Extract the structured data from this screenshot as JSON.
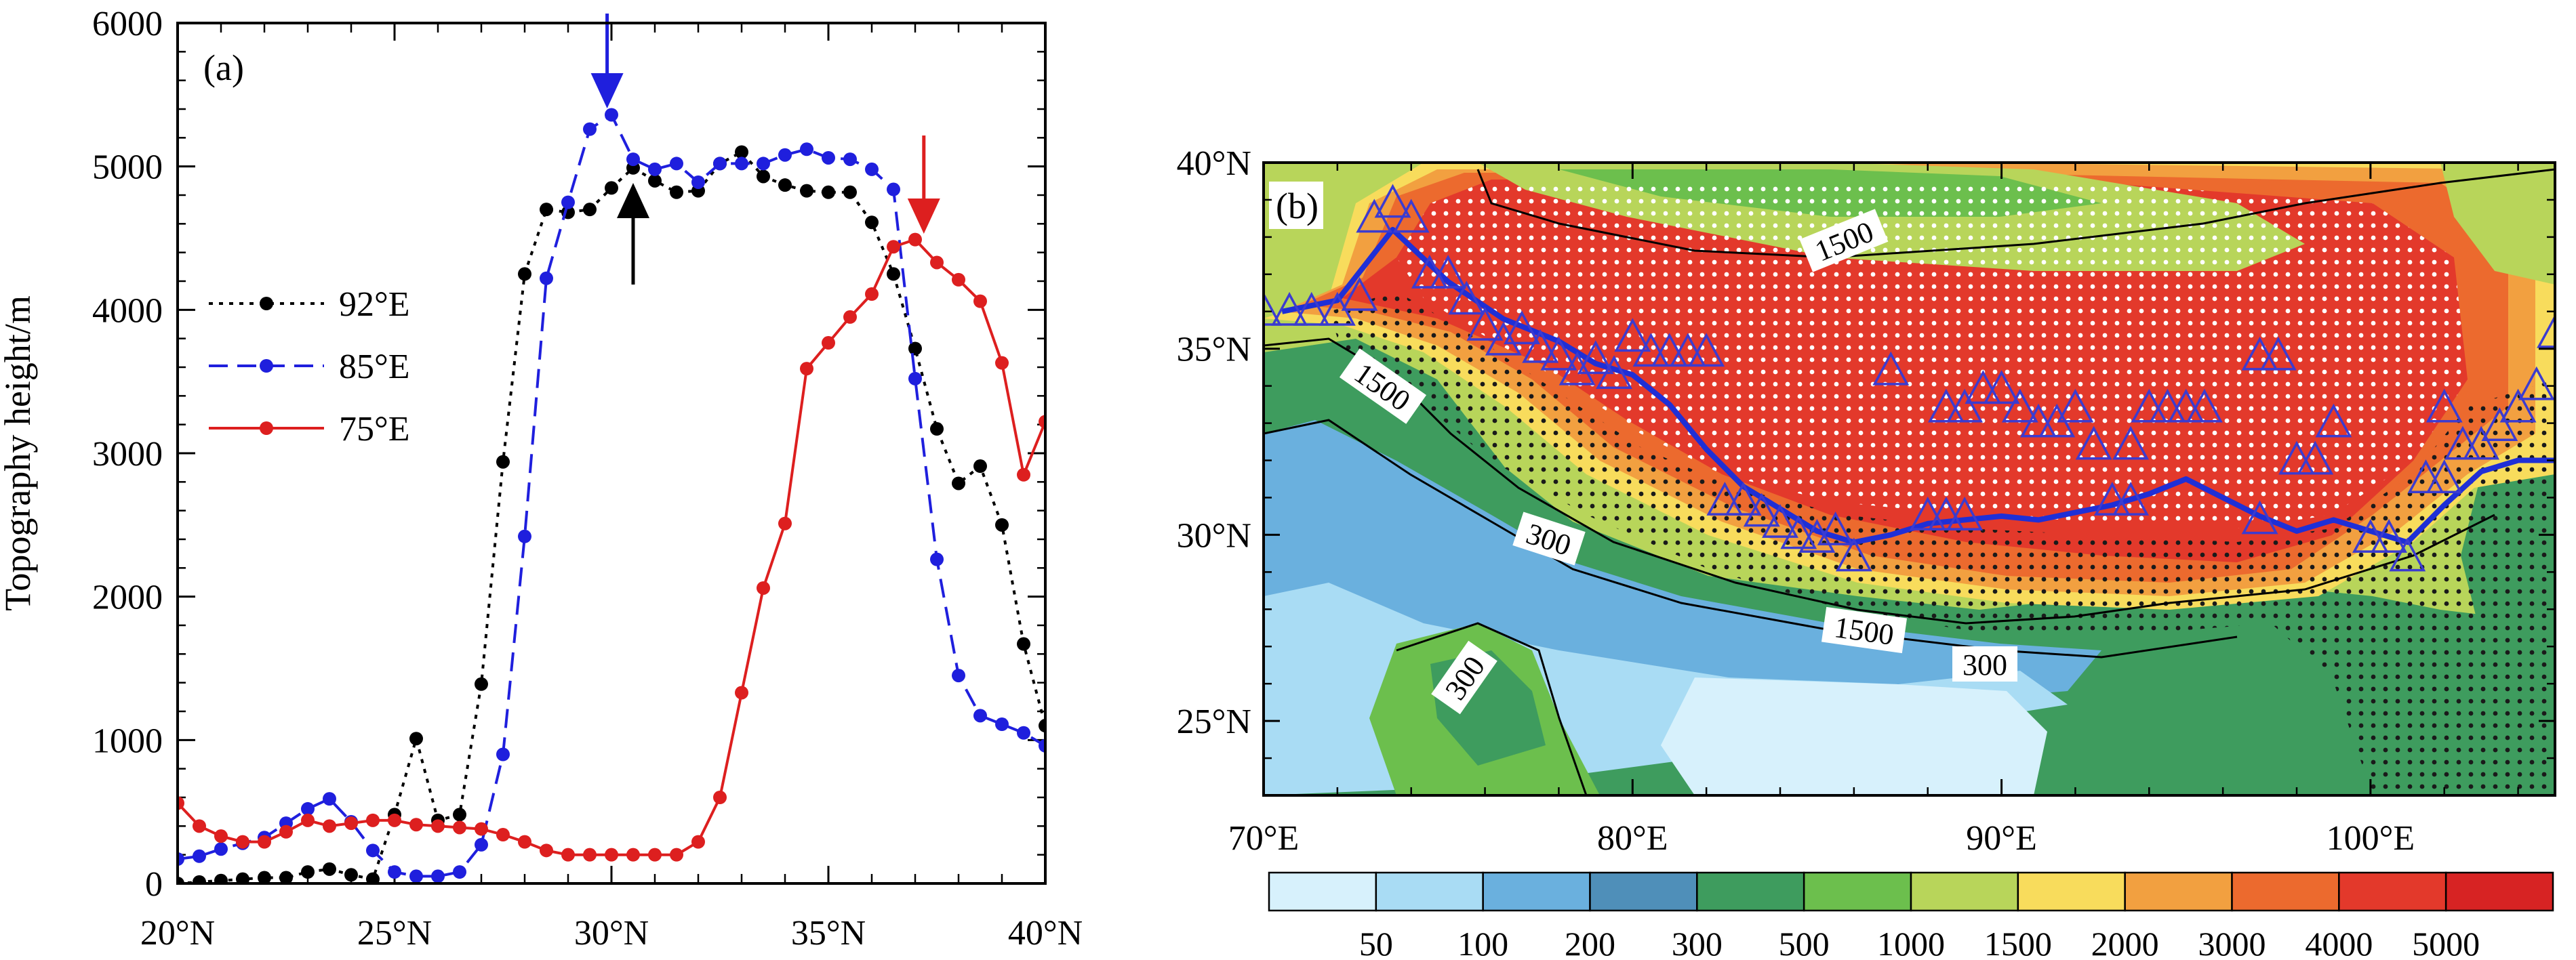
{
  "chart_data": [
    {
      "panel_label": "(a)",
      "type": "line",
      "ylabel": "Topography height/m",
      "xlim": [
        20,
        40
      ],
      "ylim": [
        0,
        6000
      ],
      "x_ticks": [
        "20°N",
        "25°N",
        "30°N",
        "35°N",
        "40°N"
      ],
      "y_ticks": [
        "0",
        "1000",
        "2000",
        "3000",
        "4000",
        "5000",
        "6000"
      ],
      "legend_position": "left",
      "series": [
        {
          "name": "92°E",
          "color": "#000000",
          "style": "dotted",
          "points": [
            [
              20,
              0
            ],
            [
              20.5,
              10
            ],
            [
              21,
              20
            ],
            [
              21.5,
              30
            ],
            [
              22,
              40
            ],
            [
              22.5,
              40
            ],
            [
              23,
              80
            ],
            [
              23.5,
              100
            ],
            [
              24,
              60
            ],
            [
              24.5,
              30
            ],
            [
              25,
              480
            ],
            [
              25.5,
              1010
            ],
            [
              26,
              440
            ],
            [
              26.5,
              480
            ],
            [
              27,
              1390
            ],
            [
              27.5,
              2940
            ],
            [
              28,
              4250
            ],
            [
              28.5,
              4700
            ],
            [
              29,
              4680
            ],
            [
              29.5,
              4700
            ],
            [
              30,
              4850
            ],
            [
              30.5,
              4990
            ],
            [
              31,
              4900
            ],
            [
              31.5,
              4820
            ],
            [
              32,
              4830
            ],
            [
              32.5,
              5020
            ],
            [
              33,
              5100
            ],
            [
              33.5,
              4930
            ],
            [
              34,
              4870
            ],
            [
              34.5,
              4830
            ],
            [
              35,
              4820
            ],
            [
              35.5,
              4820
            ],
            [
              36,
              4610
            ],
            [
              36.5,
              4250
            ],
            [
              37,
              3730
            ],
            [
              37.5,
              3170
            ],
            [
              38,
              2790
            ],
            [
              38.5,
              2910
            ],
            [
              39,
              2500
            ],
            [
              39.5,
              1670
            ],
            [
              40,
              1100
            ]
          ]
        },
        {
          "name": "85°E",
          "color": "#1f1fdd",
          "style": "dashed",
          "points": [
            [
              20,
              170
            ],
            [
              20.5,
              190
            ],
            [
              21,
              240
            ],
            [
              21.5,
              280
            ],
            [
              22,
              320
            ],
            [
              22.5,
              420
            ],
            [
              23,
              520
            ],
            [
              23.5,
              590
            ],
            [
              24,
              430
            ],
            [
              24.5,
              230
            ],
            [
              25,
              80
            ],
            [
              25.5,
              50
            ],
            [
              26,
              50
            ],
            [
              26.5,
              80
            ],
            [
              27,
              270
            ],
            [
              27.5,
              900
            ],
            [
              28,
              2420
            ],
            [
              28.5,
              4220
            ],
            [
              29,
              4750
            ],
            [
              29.5,
              5260
            ],
            [
              30,
              5360
            ],
            [
              30.5,
              5050
            ],
            [
              31,
              4980
            ],
            [
              31.5,
              5020
            ],
            [
              32,
              4890
            ],
            [
              32.5,
              5020
            ],
            [
              33,
              5020
            ],
            [
              33.5,
              5020
            ],
            [
              34,
              5080
            ],
            [
              34.5,
              5120
            ],
            [
              35,
              5060
            ],
            [
              35.5,
              5050
            ],
            [
              36,
              4980
            ],
            [
              36.5,
              4840
            ],
            [
              37,
              3520
            ],
            [
              37.5,
              2260
            ],
            [
              38,
              1450
            ],
            [
              38.5,
              1170
            ],
            [
              39,
              1110
            ],
            [
              39.5,
              1050
            ],
            [
              40,
              960
            ]
          ]
        },
        {
          "name": "75°E",
          "color": "#dd1f1f",
          "style": "solid",
          "points": [
            [
              20,
              560
            ],
            [
              20.5,
              400
            ],
            [
              21,
              330
            ],
            [
              21.5,
              290
            ],
            [
              22,
              290
            ],
            [
              22.5,
              360
            ],
            [
              23,
              440
            ],
            [
              23.5,
              400
            ],
            [
              24,
              420
            ],
            [
              24.5,
              440
            ],
            [
              25,
              440
            ],
            [
              25.5,
              410
            ],
            [
              26,
              400
            ],
            [
              26.5,
              390
            ],
            [
              27,
              380
            ],
            [
              27.5,
              340
            ],
            [
              28,
              290
            ],
            [
              28.5,
              230
            ],
            [
              29,
              200
            ],
            [
              29.5,
              200
            ],
            [
              30,
              200
            ],
            [
              30.5,
              200
            ],
            [
              31,
              200
            ],
            [
              31.5,
              200
            ],
            [
              32,
              290
            ],
            [
              32.5,
              600
            ],
            [
              33,
              1330
            ],
            [
              33.5,
              2060
            ],
            [
              34,
              2510
            ],
            [
              34.5,
              3590
            ],
            [
              35,
              3770
            ],
            [
              35.5,
              3950
            ],
            [
              36,
              4110
            ],
            [
              36.5,
              4440
            ],
            [
              37,
              4490
            ],
            [
              37.5,
              4330
            ],
            [
              38,
              4210
            ],
            [
              38.5,
              4060
            ],
            [
              39,
              3630
            ],
            [
              39.5,
              2850
            ],
            [
              40,
              3220
            ]
          ]
        }
      ],
      "arrows": [
        {
          "x": 29.9,
          "color": "#1f1fdd",
          "direction": "down"
        },
        {
          "x": 30.5,
          "color": "#000000",
          "direction": "up"
        },
        {
          "x": 37.2,
          "color": "#dd1f1f",
          "direction": "down"
        }
      ]
    },
    {
      "panel_label": "(b)",
      "type": "heatmap",
      "xlim": [
        70,
        105
      ],
      "ylim": [
        23,
        40
      ],
      "x_ticks": [
        "70°E",
        "80°E",
        "90°E",
        "100°E"
      ],
      "y_ticks": [
        "25°N",
        "30°N",
        "35°N",
        "40°N"
      ],
      "colorbar_labels": [
        "50",
        "100",
        "200",
        "300",
        "500",
        "1000",
        "1500",
        "2000",
        "3000",
        "4000",
        "5000"
      ],
      "colorbar_colors": [
        "#d7f1fc",
        "#a9dcf4",
        "#6ab0de",
        "#4f8fb9",
        "#3e9c5e",
        "#6cbf4d",
        "#b8d55a",
        "#f8dc5c",
        "#f2a040",
        "#ec6a2e",
        "#e3392b",
        "#d72323"
      ],
      "contour_labels": [
        "1500",
        "1500",
        "1500",
        "300",
        "300",
        "300"
      ],
      "boundary_line_points": [
        [
          70.5,
          36
        ],
        [
          72,
          36.3
        ],
        [
          73.5,
          38.2
        ],
        [
          75,
          36.8
        ],
        [
          76.5,
          35.8
        ],
        [
          78,
          35.2
        ],
        [
          79,
          34.6
        ],
        [
          80,
          34.3
        ],
        [
          81,
          33.5
        ],
        [
          82,
          32.3
        ],
        [
          83,
          31.3
        ],
        [
          84,
          30.7
        ],
        [
          85,
          30.1
        ],
        [
          86,
          29.8
        ],
        [
          87,
          30.0
        ],
        [
          88,
          30.3
        ],
        [
          89,
          30.4
        ],
        [
          90,
          30.5
        ],
        [
          91,
          30.4
        ],
        [
          92,
          30.6
        ],
        [
          93,
          30.8
        ],
        [
          94,
          31.1
        ],
        [
          95,
          31.5
        ],
        [
          96,
          31.0
        ],
        [
          97,
          30.5
        ],
        [
          98,
          30.1
        ],
        [
          99,
          30.4
        ],
        [
          100,
          30.1
        ],
        [
          101,
          29.8
        ],
        [
          102,
          30.8
        ],
        [
          103,
          31.7
        ],
        [
          104,
          32.0
        ],
        [
          105,
          32.0
        ]
      ],
      "station_points": [
        [
          70,
          36
        ],
        [
          70.7,
          36
        ],
        [
          71.3,
          36
        ],
        [
          72,
          36
        ],
        [
          72.6,
          36.4
        ],
        [
          73,
          38.5
        ],
        [
          73.5,
          38.9
        ],
        [
          74,
          38.5
        ],
        [
          74.5,
          37
        ],
        [
          75,
          37
        ],
        [
          75.5,
          36.3
        ],
        [
          76,
          35.6
        ],
        [
          76.5,
          35.2
        ],
        [
          77,
          35.5
        ],
        [
          77.5,
          35
        ],
        [
          78,
          34.8
        ],
        [
          78.5,
          34.4
        ],
        [
          79,
          34.7
        ],
        [
          79.5,
          34.3
        ],
        [
          80,
          35.3
        ],
        [
          80.5,
          34.9
        ],
        [
          81,
          34.9
        ],
        [
          81.5,
          34.9
        ],
        [
          82,
          34.9
        ],
        [
          82.5,
          30.9
        ],
        [
          83,
          30.9
        ],
        [
          83.5,
          30.6
        ],
        [
          84,
          30.3
        ],
        [
          84.5,
          30
        ],
        [
          85,
          29.9
        ],
        [
          85.5,
          30.1
        ],
        [
          86,
          29.4
        ],
        [
          87,
          34.4
        ],
        [
          88,
          30.5
        ],
        [
          88.5,
          30.5
        ],
        [
          89,
          30.5
        ],
        [
          88.5,
          33.4
        ],
        [
          89,
          33.4
        ],
        [
          89.5,
          33.9
        ],
        [
          90,
          33.9
        ],
        [
          90.5,
          33.4
        ],
        [
          91,
          33.0
        ],
        [
          91.5,
          33.0
        ],
        [
          92,
          33.4
        ],
        [
          92.5,
          32.4
        ],
        [
          93,
          30.9
        ],
        [
          93.5,
          30.9
        ],
        [
          93.5,
          32.4
        ],
        [
          94,
          33.4
        ],
        [
          94.5,
          33.4
        ],
        [
          95,
          33.4
        ],
        [
          95.5,
          33.4
        ],
        [
          97,
          30.4
        ],
        [
          97,
          34.8
        ],
        [
          97.5,
          34.8
        ],
        [
          98,
          32
        ],
        [
          98.5,
          32
        ],
        [
          99,
          33
        ],
        [
          100,
          29.9
        ],
        [
          100.5,
          29.9
        ],
        [
          101,
          29.4
        ],
        [
          101.5,
          31.5
        ],
        [
          102,
          31.5
        ],
        [
          102,
          33.4
        ],
        [
          102.5,
          32.4
        ],
        [
          103,
          32.4
        ],
        [
          103.5,
          32.9
        ],
        [
          104,
          33.4
        ],
        [
          104.5,
          34.0
        ],
        [
          105,
          35.4
        ]
      ]
    }
  ]
}
